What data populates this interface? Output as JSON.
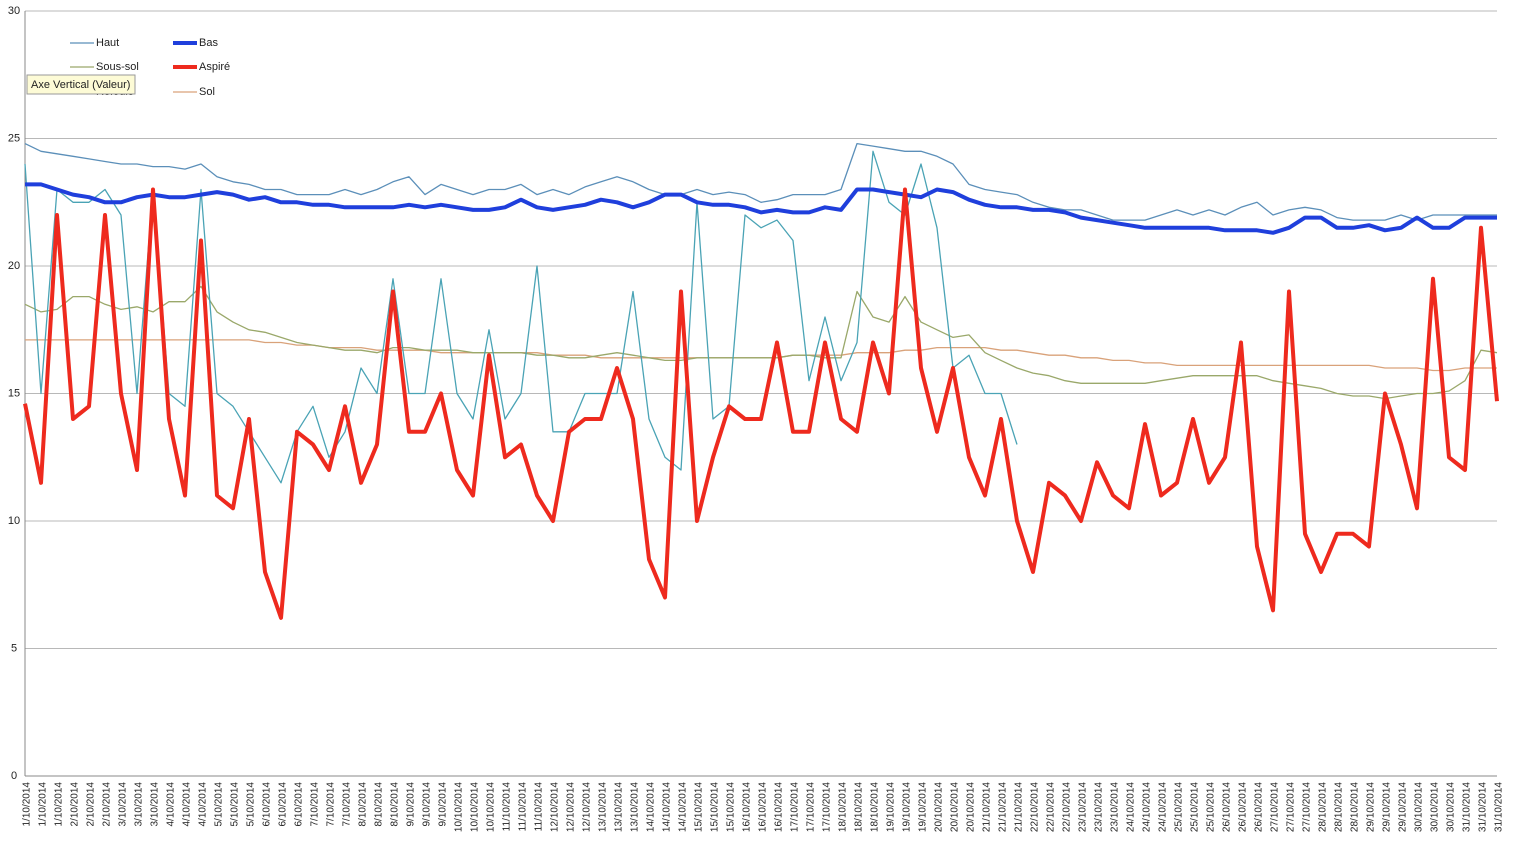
{
  "chart_data": {
    "type": "line",
    "tooltip": "Axe Vertical (Valeur)",
    "categories": [
      "1/10/2014",
      "1/10/2014",
      "1/10/2014",
      "2/10/2014",
      "2/10/2014",
      "2/10/2014",
      "3/10/2014",
      "3/10/2014",
      "3/10/2014",
      "4/10/2014",
      "4/10/2014",
      "4/10/2014",
      "5/10/2014",
      "5/10/2014",
      "5/10/2014",
      "6/10/2014",
      "6/10/2014",
      "6/10/2014",
      "7/10/2014",
      "7/10/2014",
      "7/10/2014",
      "8/10/2014",
      "8/10/2014",
      "8/10/2014",
      "9/10/2014",
      "9/10/2014",
      "9/10/2014",
      "10/10/2014",
      "10/10/2014",
      "10/10/2014",
      "11/10/2014",
      "11/10/2014",
      "11/10/2014",
      "12/10/2014",
      "12/10/2014",
      "12/10/2014",
      "13/10/2014",
      "13/10/2014",
      "13/10/2014",
      "14/10/2014",
      "14/10/2014",
      "14/10/2014",
      "15/10/2014",
      "15/10/2014",
      "15/10/2014",
      "16/10/2014",
      "16/10/2014",
      "16/10/2014",
      "17/10/2014",
      "17/10/2014",
      "17/10/2014",
      "18/10/2014",
      "18/10/2014",
      "18/10/2014",
      "19/10/2014",
      "19/10/2014",
      "19/10/2014",
      "20/10/2014",
      "20/10/2014",
      "20/10/2014",
      "21/10/2014",
      "21/10/2014",
      "21/10/2014",
      "22/10/2014",
      "22/10/2014",
      "22/10/2014",
      "23/10/2014",
      "23/10/2014",
      "23/10/2014",
      "24/10/2014",
      "24/10/2014",
      "24/10/2014",
      "25/10/2014",
      "25/10/2014",
      "25/10/2014",
      "26/10/2014",
      "26/10/2014",
      "26/10/2014",
      "27/10/2014",
      "27/10/2014",
      "27/10/2014",
      "28/10/2014",
      "28/10/2014",
      "28/10/2014",
      "29/10/2014",
      "29/10/2014",
      "29/10/2014",
      "30/10/2014",
      "30/10/2014",
      "30/10/2014",
      "31/10/2014",
      "31/10/2014",
      "31/10/2014"
    ],
    "ylim": [
      0,
      30
    ],
    "yticks": [
      0,
      5,
      10,
      15,
      20,
      25,
      30
    ],
    "grid": true,
    "series": [
      {
        "name": "Haut",
        "color": "#5b8fb9",
        "values": [
          24.8,
          24.5,
          24.4,
          24.3,
          24.2,
          24.1,
          24,
          24,
          23.9,
          23.9,
          23.8,
          24,
          23.5,
          23.3,
          23.2,
          23,
          23,
          22.8,
          22.8,
          22.8,
          23,
          22.8,
          23,
          23.3,
          23.5,
          22.8,
          23.2,
          23,
          22.8,
          23,
          23,
          23.2,
          22.8,
          23,
          22.8,
          23.1,
          23.3,
          23.5,
          23.3,
          23,
          22.8,
          22.8,
          23,
          22.8,
          22.9,
          22.8,
          22.5,
          22.6,
          22.8,
          22.8,
          22.8,
          23,
          24.8,
          24.7,
          24.6,
          24.5,
          24.5,
          24.3,
          24,
          23.2,
          23,
          22.9,
          22.8,
          22.5,
          22.3,
          22.2,
          22.2,
          22,
          21.8,
          21.8,
          21.8,
          22,
          22.2,
          22,
          22.2,
          22,
          22.3,
          22.5,
          22,
          22.2,
          22.3,
          22.2,
          21.9,
          21.8,
          21.8,
          21.8,
          22,
          21.8,
          22,
          22,
          22,
          22,
          22
        ]
      },
      {
        "name": "Bas",
        "color": "#1f3fdc",
        "values": [
          23.2,
          23.2,
          23,
          22.8,
          22.7,
          22.5,
          22.5,
          22.7,
          22.8,
          22.7,
          22.7,
          22.8,
          22.9,
          22.8,
          22.6,
          22.7,
          22.5,
          22.5,
          22.4,
          22.4,
          22.3,
          22.3,
          22.3,
          22.3,
          22.4,
          22.3,
          22.4,
          22.3,
          22.2,
          22.2,
          22.3,
          22.6,
          22.3,
          22.2,
          22.3,
          22.4,
          22.6,
          22.5,
          22.3,
          22.5,
          22.8,
          22.8,
          22.5,
          22.4,
          22.4,
          22.3,
          22.1,
          22.2,
          22.1,
          22.1,
          22.3,
          22.2,
          23,
          23,
          22.9,
          22.8,
          22.7,
          23,
          22.9,
          22.6,
          22.4,
          22.3,
          22.3,
          22.2,
          22.2,
          22.1,
          21.9,
          21.8,
          21.7,
          21.6,
          21.5,
          21.5,
          21.5,
          21.5,
          21.5,
          21.4,
          21.4,
          21.4,
          21.3,
          21.5,
          21.9,
          21.9,
          21.5,
          21.5,
          21.6,
          21.4,
          21.5,
          21.9,
          21.5,
          21.5,
          21.9,
          21.9,
          21.9
        ]
      },
      {
        "name": "Sous-sol",
        "color": "#9aa86a",
        "values": [
          18.5,
          18.2,
          18.3,
          18.8,
          18.8,
          18.5,
          18.3,
          18.4,
          18.2,
          18.6,
          18.6,
          19.2,
          18.2,
          17.8,
          17.5,
          17.4,
          17.2,
          17,
          16.9,
          16.8,
          16.7,
          16.7,
          16.6,
          16.8,
          16.8,
          16.7,
          16.7,
          16.7,
          16.6,
          16.6,
          16.6,
          16.6,
          16.5,
          16.5,
          16.4,
          16.4,
          16.5,
          16.6,
          16.5,
          16.4,
          16.3,
          16.3,
          16.4,
          16.4,
          16.4,
          16.4,
          16.4,
          16.4,
          16.5,
          16.5,
          16.4,
          16.4,
          19,
          18,
          17.8,
          18.8,
          17.8,
          17.5,
          17.2,
          17.3,
          16.6,
          16.3,
          16,
          15.8,
          15.7,
          15.5,
          15.4,
          15.4,
          15.4,
          15.4,
          15.4,
          15.5,
          15.6,
          15.7,
          15.7,
          15.7,
          15.7,
          15.7,
          15.5,
          15.4,
          15.3,
          15.2,
          15,
          14.9,
          14.9,
          14.8,
          14.9,
          15,
          15,
          15.1,
          15.5,
          16.7,
          16.6
        ]
      },
      {
        "name": "Aspiré",
        "color": "#ee2a1e",
        "values": [
          14.6,
          11.5,
          22,
          14,
          14.5,
          22,
          15,
          12,
          23,
          14,
          11,
          21,
          11,
          10.5,
          14,
          8,
          6.2,
          13.5,
          13,
          12,
          14.5,
          11.5,
          13,
          19,
          13.5,
          13.5,
          15,
          12,
          11,
          16.5,
          12.5,
          13,
          11,
          10,
          13.5,
          14,
          14,
          16,
          14,
          8.5,
          7,
          19,
          10,
          12.5,
          14.5,
          14,
          14,
          17,
          13.5,
          13.5,
          17,
          14,
          13.5,
          17,
          15,
          23,
          16,
          13.5,
          16,
          12.5,
          11,
          14,
          10,
          8,
          11.5,
          11,
          10,
          12.3,
          11,
          10.5,
          13.8,
          11,
          11.5,
          14,
          11.5,
          12.5,
          17,
          9,
          6.5,
          19,
          9.5,
          8,
          9.5,
          9.5,
          9,
          15,
          13,
          10.5,
          19.5,
          12.5,
          12,
          21.5,
          14.7
        ]
      },
      {
        "name": "Refoulé",
        "color": "#4aa3b5",
        "values": [
          24,
          15,
          23,
          22.5,
          22.5,
          23,
          22,
          15,
          23,
          15,
          14.5,
          23,
          15,
          14.5,
          13.5,
          12.5,
          11.5,
          13.5,
          14.5,
          12.5,
          13.5,
          16,
          15,
          19.5,
          15,
          15,
          19.5,
          15,
          14,
          17.5,
          14,
          15,
          20,
          13.5,
          13.5,
          15,
          15,
          15,
          19,
          14,
          12.5,
          12,
          22.5,
          14,
          14.5,
          22,
          21.5,
          21.8,
          21,
          15.5,
          18,
          15.5,
          17,
          24.5,
          22.5,
          22,
          24,
          21.5,
          16,
          16.5,
          15,
          15,
          13,
          null,
          null,
          null,
          null,
          null,
          null,
          null,
          null,
          null,
          null,
          null,
          null,
          null,
          null,
          null,
          null,
          null,
          null,
          null,
          null,
          null,
          null,
          null,
          null,
          null,
          null,
          null,
          null,
          null,
          null
        ]
      },
      {
        "name": "Sol",
        "color": "#d9a27a",
        "values": [
          17.1,
          17.1,
          17.1,
          17.1,
          17.1,
          17.1,
          17.1,
          17.1,
          17.1,
          17.1,
          17.1,
          17.1,
          17.1,
          17.1,
          17.1,
          17,
          17,
          16.9,
          16.9,
          16.8,
          16.8,
          16.8,
          16.7,
          16.7,
          16.7,
          16.7,
          16.6,
          16.6,
          16.6,
          16.6,
          16.6,
          16.6,
          16.6,
          16.5,
          16.5,
          16.5,
          16.4,
          16.4,
          16.4,
          16.4,
          16.4,
          16.4,
          16.4,
          16.4,
          16.4,
          16.4,
          16.4,
          16.4,
          16.5,
          16.5,
          16.5,
          16.5,
          16.6,
          16.6,
          16.6,
          16.7,
          16.7,
          16.8,
          16.8,
          16.8,
          16.8,
          16.7,
          16.7,
          16.6,
          16.5,
          16.5,
          16.4,
          16.4,
          16.3,
          16.3,
          16.2,
          16.2,
          16.1,
          16.1,
          16.1,
          16.1,
          16.1,
          16.1,
          16.1,
          16.1,
          16.1,
          16.1,
          16.1,
          16.1,
          16.1,
          16,
          16,
          16,
          15.9,
          15.9,
          16,
          16,
          16
        ]
      }
    ]
  }
}
